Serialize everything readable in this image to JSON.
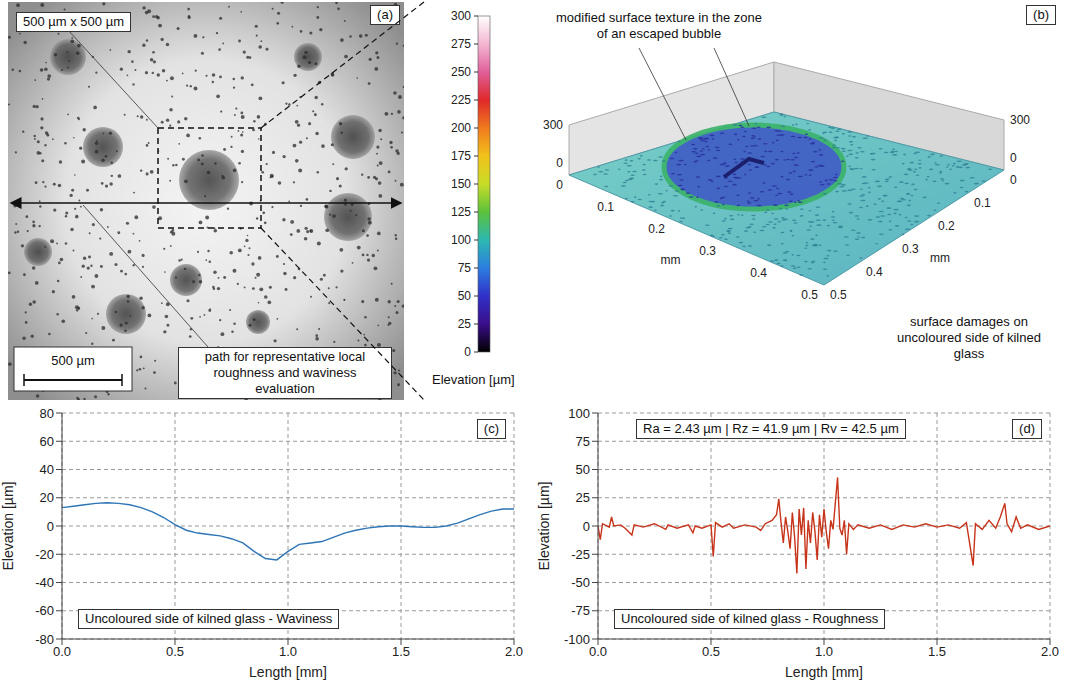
{
  "panel_a": {
    "label": "(a)",
    "size_label": "500 µm x 500 µm",
    "path_label": "path for representative local roughness and waviness evaluation",
    "scale_bar": "500 µm"
  },
  "panel_b": {
    "label": "(b)",
    "annotations": [
      "modified surface texture in the zone of an escaped bubble",
      "surface damages on uncoloured side of kilned glass"
    ],
    "axis_ticks": [
      0,
      0.1,
      0.2,
      0.3,
      0.4,
      0.5
    ],
    "axis_unit": "mm",
    "z_ticks": [
      0,
      300
    ],
    "colorbar": {
      "range": [
        0,
        300
      ],
      "ticks": [
        0,
        25,
        50,
        75,
        100,
        125,
        150,
        175,
        200,
        225,
        250,
        275,
        300
      ],
      "label": "Elevation [µm]"
    }
  },
  "chart_data": [
    {
      "type": "line",
      "label": "(c)",
      "title": "Uncoloured side of kilned glass - Waviness",
      "x_label": "Length [mm]",
      "y_label": "Elevation [µm]",
      "x": [
        0,
        0.05,
        0.1,
        0.15,
        0.2,
        0.25,
        0.3,
        0.35,
        0.4,
        0.45,
        0.5,
        0.55,
        0.6,
        0.65,
        0.7,
        0.75,
        0.8,
        0.85,
        0.9,
        0.95,
        1.0,
        1.05,
        1.1,
        1.15,
        1.2,
        1.25,
        1.3,
        1.35,
        1.4,
        1.45,
        1.5,
        1.55,
        1.6,
        1.65,
        1.7,
        1.75,
        1.8,
        1.85,
        1.9,
        1.95,
        2.0
      ],
      "values": [
        13,
        14,
        15,
        16,
        16.5,
        16,
        15,
        13,
        10,
        6,
        1,
        -3,
        -5,
        -6,
        -7,
        -9,
        -12,
        -18,
        -23,
        -24,
        -18,
        -13,
        -12,
        -11,
        -8,
        -5,
        -3,
        -1.5,
        -0.5,
        0,
        0,
        -0.5,
        -1,
        -1,
        0,
        2,
        5,
        8,
        10.5,
        12,
        12
      ],
      "color": "#2e75b6",
      "xlim": [
        0,
        2
      ],
      "xticks": [
        {
          "value": 0,
          "label": "0.0"
        },
        {
          "value": 0.5,
          "label": "0.5"
        },
        {
          "value": 1,
          "label": "1.0"
        },
        {
          "value": 1.5,
          "label": "1.5"
        },
        {
          "value": 2,
          "label": "2.0"
        }
      ],
      "ylim": [
        -80,
        80
      ],
      "yticks": [
        -80,
        -60,
        -40,
        -20,
        0,
        20,
        40,
        60,
        80
      ],
      "grid": true
    },
    {
      "type": "line",
      "label": "(d)",
      "title": "Uncoloured side of kilned glass - Roughness",
      "annotations": [
        "Ra = 2.43 µm | Rz = 41.9 µm | Rv = 42.5 µm"
      ],
      "x_label": "Length [mm]",
      "y_label": "Elevation [µm]",
      "x": [
        0,
        0.01,
        0.02,
        0.05,
        0.06,
        0.07,
        0.1,
        0.12,
        0.15,
        0.16,
        0.2,
        0.25,
        0.3,
        0.31,
        0.35,
        0.4,
        0.42,
        0.43,
        0.46,
        0.5,
        0.51,
        0.52,
        0.55,
        0.58,
        0.6,
        0.65,
        0.7,
        0.72,
        0.74,
        0.77,
        0.79,
        0.8,
        0.81,
        0.82,
        0.83,
        0.84,
        0.85,
        0.86,
        0.87,
        0.88,
        0.89,
        0.9,
        0.91,
        0.92,
        0.93,
        0.94,
        0.95,
        0.96,
        0.97,
        0.98,
        0.99,
        1.0,
        1.01,
        1.02,
        1.03,
        1.04,
        1.05,
        1.06,
        1.07,
        1.08,
        1.09,
        1.1,
        1.11,
        1.13,
        1.15,
        1.2,
        1.25,
        1.3,
        1.35,
        1.4,
        1.45,
        1.5,
        1.55,
        1.6,
        1.63,
        1.66,
        1.67,
        1.7,
        1.73,
        1.76,
        1.78,
        1.8,
        1.81,
        1.83,
        1.85,
        1.87,
        1.9,
        1.95,
        2.0
      ],
      "values": [
        0,
        -12,
        2,
        -1,
        8,
        0,
        1,
        -2,
        -8,
        1,
        -1,
        2,
        -3,
        1,
        -2,
        1,
        -6,
        0,
        -2,
        1,
        -27,
        3,
        -1,
        2,
        -2,
        1,
        -1,
        -4,
        2,
        5,
        10,
        24,
        3,
        -15,
        8,
        -5,
        -20,
        12,
        -10,
        -42,
        15,
        -8,
        16,
        -38,
        5,
        -15,
        12,
        -5,
        -30,
        10,
        -10,
        15,
        -5,
        -20,
        5,
        -3,
        20,
        43,
        -2,
        -8,
        5,
        -25,
        2,
        -3,
        1,
        -2,
        1,
        -3,
        1,
        -1,
        2,
        -1,
        1,
        -2,
        3,
        -35,
        2,
        -3,
        5,
        -2,
        8,
        20,
        2,
        -5,
        8,
        -2,
        1,
        -3,
        0
      ],
      "color": "#c8341a",
      "xlim": [
        0,
        2
      ],
      "xticks": [
        {
          "value": 0,
          "label": "0.0"
        },
        {
          "value": 0.5,
          "label": "0.5"
        },
        {
          "value": 1,
          "label": "1.0"
        },
        {
          "value": 1.5,
          "label": "1.5"
        },
        {
          "value": 2,
          "label": "2.0"
        }
      ],
      "ylim": [
        -100,
        100
      ],
      "yticks": [
        -100,
        -75,
        -50,
        -25,
        0,
        25,
        50,
        75,
        100
      ],
      "grid": true
    }
  ]
}
